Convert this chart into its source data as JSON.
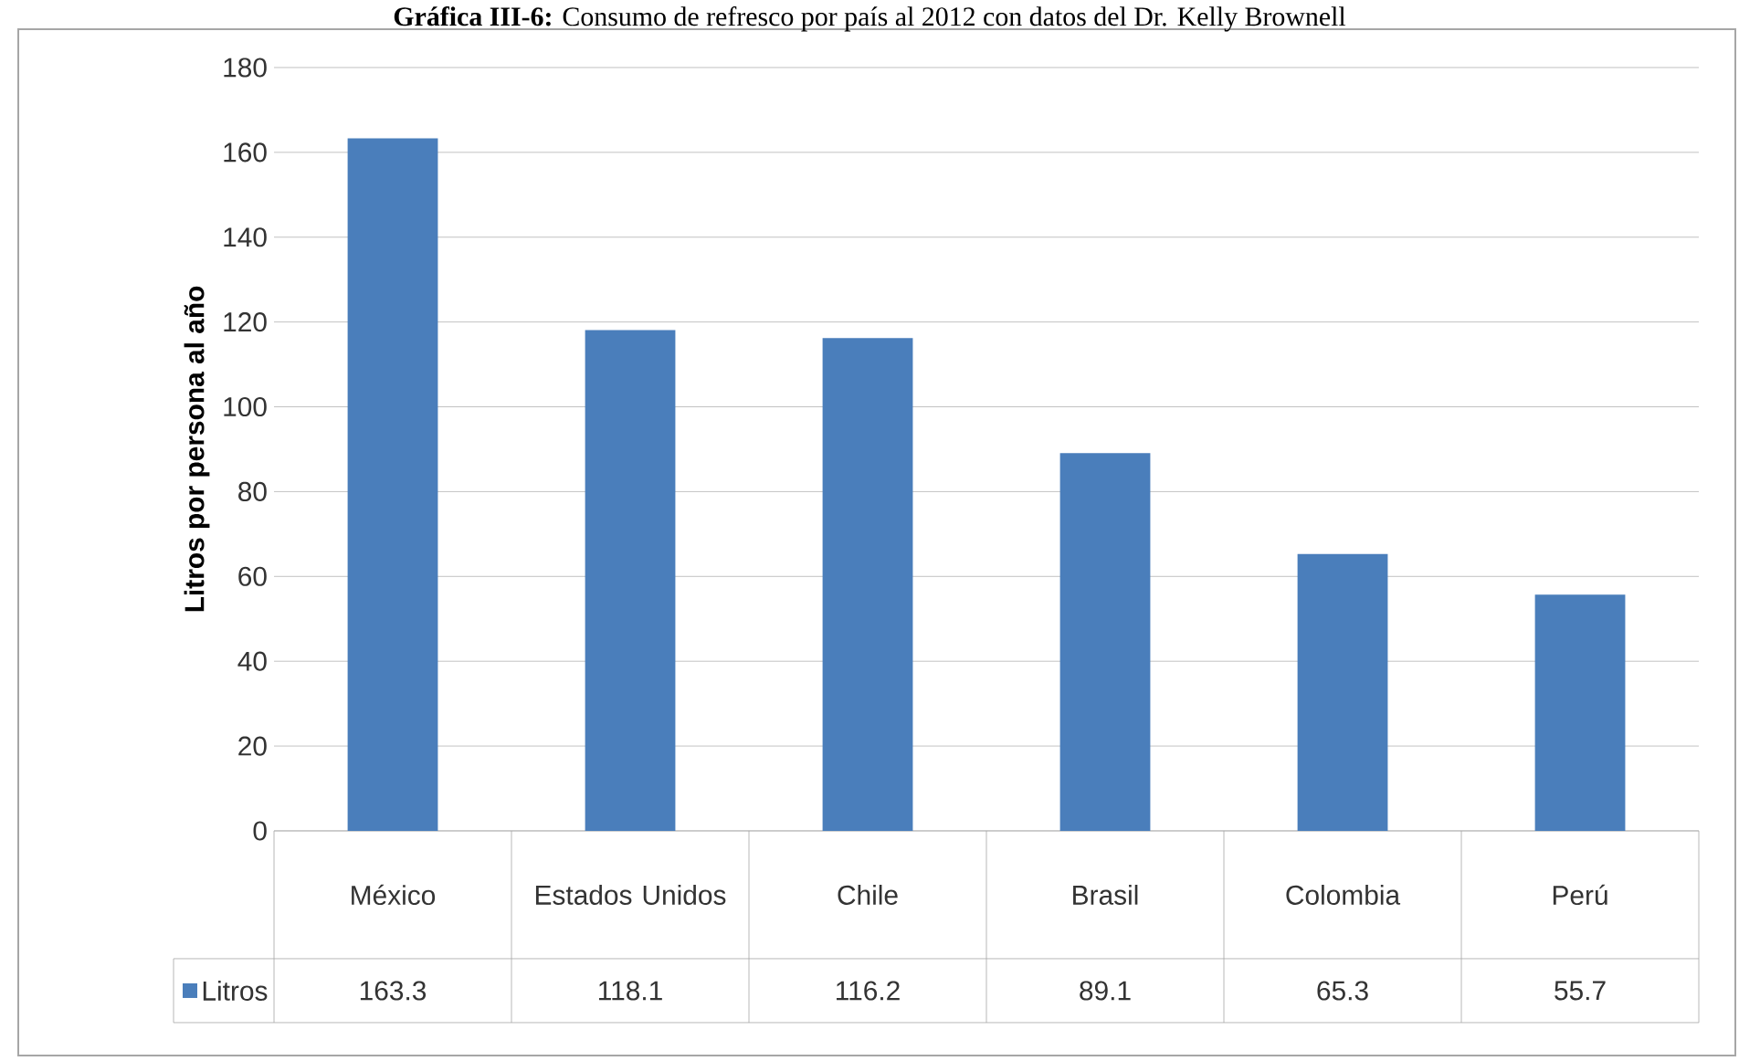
{
  "chart_data": {
    "type": "bar",
    "title": "**Gráfica III-6:** Consumo de refresco por país al 2012 con datos del Dr. Kelly Brownell",
    "ylabel": "Litros por persona al año",
    "categories": [
      "México",
      "Estados Unidos",
      "Chile",
      "Brasil",
      "Colombia",
      "Perú"
    ],
    "series": [
      {
        "name": "Litros",
        "color": "#4a7ebb",
        "values": [
          163.3,
          118.1,
          116.2,
          89.1,
          65.3,
          55.7
        ]
      }
    ],
    "ylim": [
      0,
      180
    ],
    "yticks": [
      0,
      20,
      40,
      60,
      80,
      100,
      120,
      140,
      160,
      180
    ],
    "grid": "y",
    "legend": "bottom",
    "data_labels": true
  }
}
